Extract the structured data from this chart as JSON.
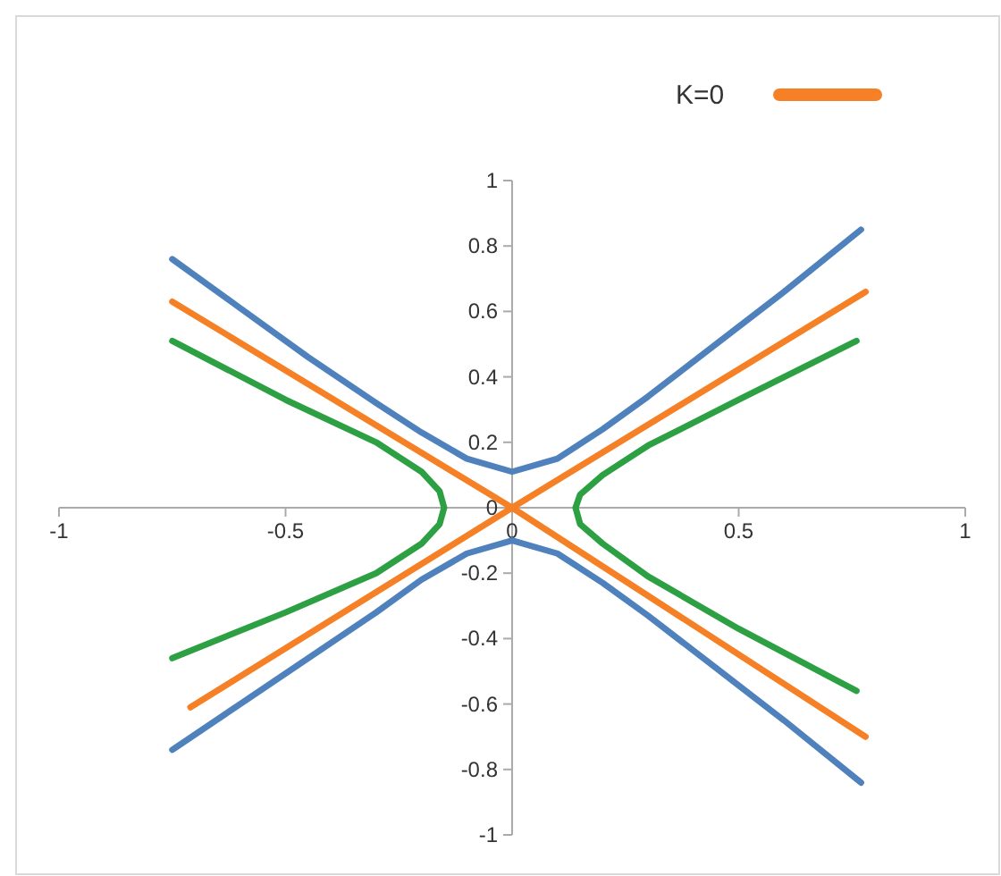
{
  "chart_data": {
    "type": "line",
    "xlim": [
      -1,
      1
    ],
    "ylim": [
      -1,
      1
    ],
    "xticks": [
      -1,
      -0.5,
      0,
      0.5,
      1
    ],
    "yticks": [
      -1,
      -0.8,
      -0.6,
      -0.4,
      -0.2,
      0,
      0.2,
      0.4,
      0.6,
      0.8,
      1
    ],
    "grid": false,
    "legend": "top right",
    "marker": "none",
    "line_style": "solid",
    "series": [
      {
        "color": "#4f81bd",
        "x": [
          -0.75,
          -0.6,
          -0.45,
          -0.3,
          -0.2,
          -0.1,
          0,
          0.1,
          0.2,
          0.3,
          0.45,
          0.6,
          0.77
        ],
        "values": [
          0.76,
          0.61,
          0.46,
          0.32,
          0.23,
          0.15,
          0.11,
          0.15,
          0.24,
          0.34,
          0.5,
          0.66,
          0.85
        ]
      },
      {
        "color": "#4f81bd",
        "x": [
          -0.75,
          -0.6,
          -0.45,
          -0.3,
          -0.2,
          -0.1,
          0,
          0.1,
          0.2,
          0.3,
          0.45,
          0.6,
          0.77
        ],
        "values": [
          -0.74,
          -0.6,
          -0.46,
          -0.32,
          -0.22,
          -0.14,
          -0.1,
          -0.14,
          -0.23,
          -0.33,
          -0.49,
          -0.65,
          -0.84
        ]
      },
      {
        "name": "K=0",
        "color": "#f58025",
        "x": [
          -0.75,
          0,
          0.78
        ],
        "values": [
          0.63,
          0,
          -0.7
        ]
      },
      {
        "color": "#f58025",
        "x": [
          -0.71,
          0,
          0.78
        ],
        "values": [
          -0.61,
          0,
          0.66
        ]
      },
      {
        "color": "#2ca042",
        "x": [
          -0.75,
          -0.5,
          -0.3,
          -0.2,
          -0.16,
          -0.15,
          -0.16,
          -0.2,
          -0.3,
          -0.5,
          -0.75
        ],
        "values": [
          0.51,
          0.33,
          0.2,
          0.11,
          0.05,
          0,
          -0.05,
          -0.11,
          -0.2,
          -0.32,
          -0.46
        ]
      },
      {
        "color": "#2ca042",
        "x": [
          0.76,
          0.5,
          0.3,
          0.2,
          0.15,
          0.14,
          0.15,
          0.2,
          0.3,
          0.5,
          0.76
        ],
        "values": [
          0.51,
          0.33,
          0.19,
          0.1,
          0.04,
          0,
          -0.05,
          -0.11,
          -0.21,
          -0.37,
          -0.56
        ]
      }
    ]
  }
}
